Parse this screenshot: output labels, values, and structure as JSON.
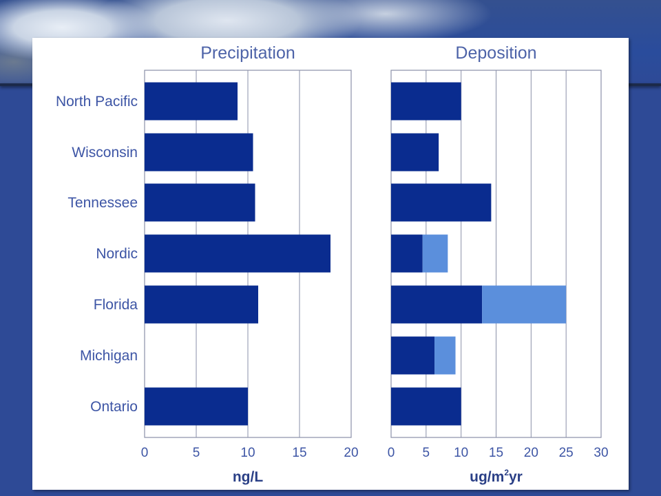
{
  "colors": {
    "primary_bar": "#0a2c8f",
    "secondary_bar": "#5b8fdc",
    "grid": "#8a8fa8",
    "label": "#3d55a5",
    "background": "#2e4a96"
  },
  "chart_data": [
    {
      "type": "bar",
      "orientation": "horizontal",
      "title": "Precipitation",
      "xlabel": "ng/L",
      "categories": [
        "North Pacific",
        "Wisconsin",
        "Tennessee",
        "Nordic",
        "Florida",
        "Michigan",
        "Ontario"
      ],
      "series": [
        {
          "values": [
            9,
            10.5,
            10.7,
            18,
            11,
            0,
            10
          ]
        }
      ],
      "xlim": [
        0,
        20
      ],
      "xticks": [
        0,
        5,
        10,
        15,
        20
      ],
      "grid": true
    },
    {
      "type": "bar",
      "orientation": "horizontal",
      "stacked": true,
      "title": "Deposition",
      "xlabel": "ug/m",
      "xlabel_sup": "2",
      "xlabel_suffix": "yr",
      "categories": [
        "North Pacific",
        "Wisconsin",
        "Tennessee",
        "Nordic",
        "Florida",
        "Michigan",
        "Ontario"
      ],
      "series": [
        {
          "values": [
            10,
            6.8,
            14.3,
            4.5,
            13,
            6.2,
            10
          ]
        },
        {
          "values": [
            0,
            0,
            0,
            3.6,
            12,
            3,
            0
          ]
        }
      ],
      "xlim": [
        0,
        30
      ],
      "xticks": [
        0,
        5,
        10,
        15,
        20,
        25,
        30
      ],
      "grid": true
    }
  ]
}
